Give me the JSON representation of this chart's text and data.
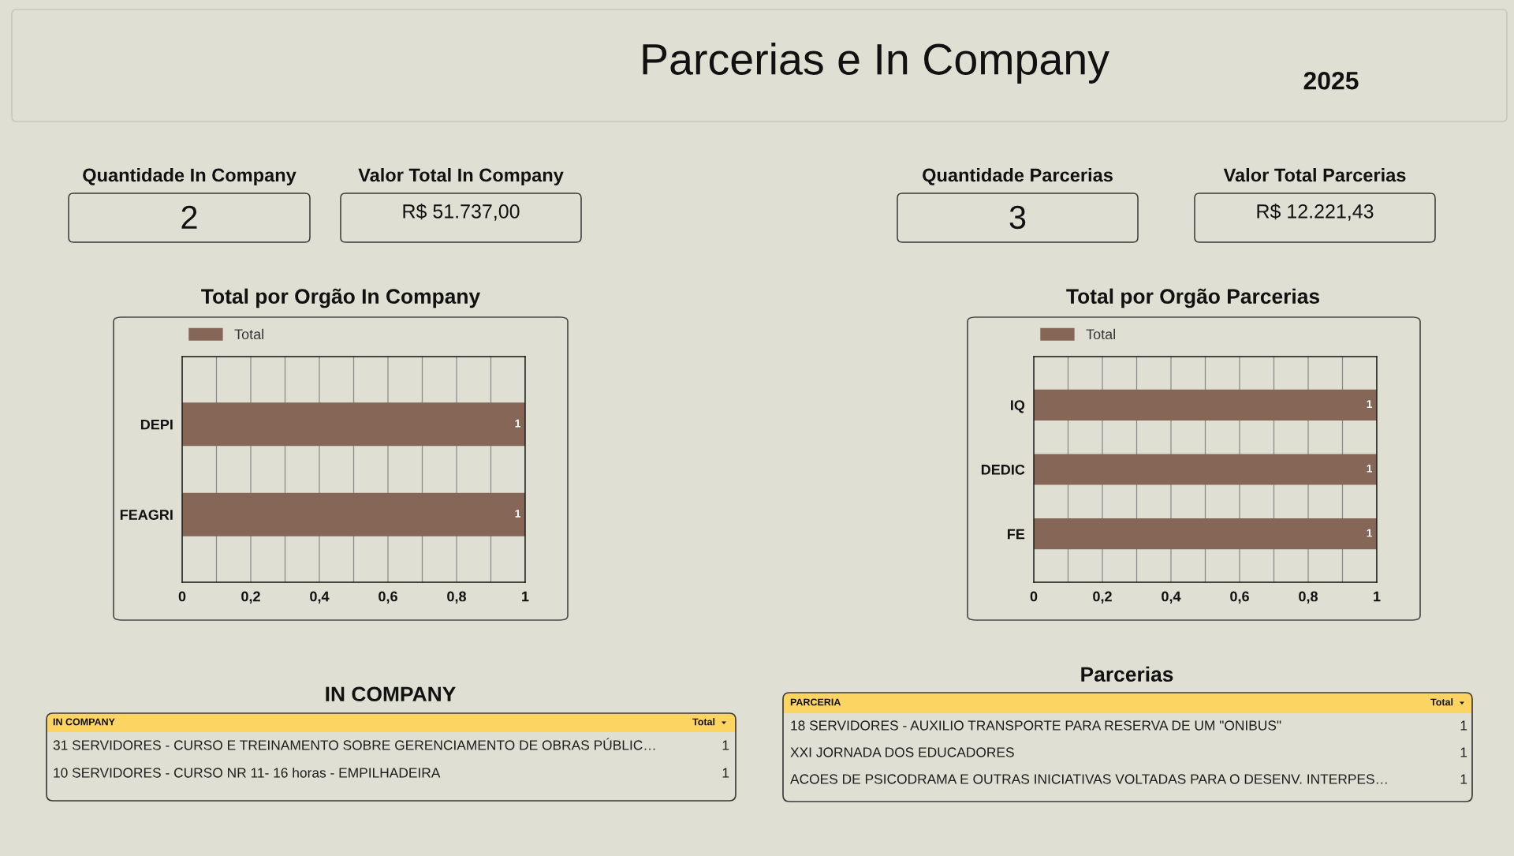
{
  "chart_data": [
    {
      "type": "other",
      "title": "Parcerias e In Company",
      "annotations": [
        "2025"
      ]
    },
    {
      "type": "other",
      "title": "Quantidade In Company",
      "annotations": [
        "2"
      ]
    },
    {
      "type": "other",
      "title": "Valor Total In Company",
      "annotations": [
        "R$ 51.737,00"
      ]
    },
    {
      "type": "other",
      "title": "Quantidade Parcerias",
      "annotations": [
        "3"
      ]
    },
    {
      "type": "other",
      "title": "Valor Total Parcerias",
      "annotations": [
        "R$ 12.221,43"
      ]
    },
    {
      "type": "bar",
      "title": "Total por Orgão In Company",
      "orientation": "horizontal",
      "categories": [
        "DEPI",
        "FEAGRI"
      ],
      "series": [
        {
          "name": "Total",
          "color": "#866656",
          "values": [
            1,
            1
          ]
        }
      ],
      "xlim": [
        0,
        1
      ],
      "xticks": [
        0,
        {
          "value": 0.1,
          "label": null
        },
        {
          "value": 0.2,
          "label": "0,2"
        },
        {
          "value": 0.3,
          "label": null
        },
        {
          "value": 0.4,
          "label": "0,4"
        },
        {
          "value": 0.5,
          "label": null
        },
        {
          "value": 0.6,
          "label": "0,6"
        },
        {
          "value": 0.7,
          "label": null
        },
        {
          "value": 0.8,
          "label": "0,8"
        },
        {
          "value": 0.9,
          "label": null
        },
        1
      ],
      "grid": "x",
      "legend": "top left",
      "data_labels": true
    },
    {
      "type": "bar",
      "title": "Total por Orgão Parcerias",
      "orientation": "horizontal",
      "categories": [
        "IQ",
        "DEDIC",
        "FE"
      ],
      "series": [
        {
          "name": "Total",
          "color": "#866656",
          "values": [
            1,
            1,
            1
          ]
        }
      ],
      "xlim": [
        0,
        1
      ],
      "xticks": [
        0,
        {
          "value": 0.1,
          "label": null
        },
        {
          "value": 0.2,
          "label": "0,2"
        },
        {
          "value": 0.3,
          "label": null
        },
        {
          "value": 0.4,
          "label": "0,4"
        },
        {
          "value": 0.5,
          "label": null
        },
        {
          "value": 0.6,
          "label": "0,6"
        },
        {
          "value": 0.7,
          "label": null
        },
        {
          "value": 0.8,
          "label": "0,8"
        },
        {
          "value": 0.9,
          "label": null
        },
        1
      ],
      "grid": "x",
      "legend": "top left",
      "data_labels": true
    },
    {
      "type": "other",
      "title": "IN COMPANY",
      "annotations": [
        "IN COMPANY",
        "Total",
        "31 SERVIDORES - CURSO E TREINAMENTO SOBRE GERENCIAMENTO DE OBRAS PÚBLIC…",
        "1",
        "10 SERVIDORES - CURSO NR 11- 16 horas - EMPILHADEIRA",
        "1"
      ]
    },
    {
      "type": "other",
      "title": "Parcerias",
      "annotations": [
        "PARCERIA",
        "Total",
        "18 SERVIDORES - AUXILIO TRANSPORTE PARA RESERVA DE UM \"ONIBUS\"",
        "1",
        "XXI JORNADA DOS EDUCADORES",
        "1",
        "ACOES DE PSICODRAMA E OUTRAS INICIATIVAS VOLTADAS PARA O DESENV. INTERPES…",
        "1"
      ]
    }
  ]
}
